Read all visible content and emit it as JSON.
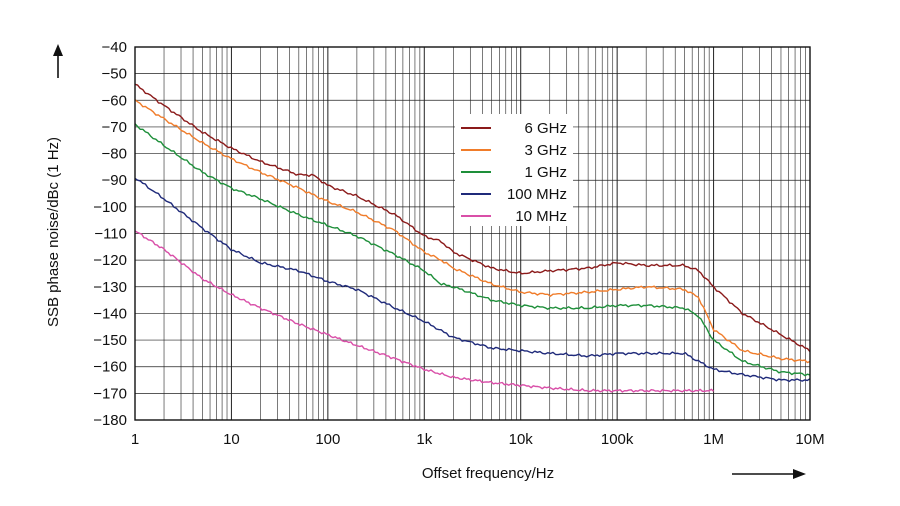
{
  "chart_data": {
    "type": "line",
    "xscale": "log",
    "xlabel": "Offset frequency/Hz",
    "ylabel": "SSB phase noise/dBc (1 Hz)",
    "xlim": [
      1,
      10000000
    ],
    "ylim": [
      -180,
      -40
    ],
    "grid": true,
    "legend_position": "upper-center",
    "x_ticks": [
      {
        "value": 1,
        "label": "1"
      },
      {
        "value": 10,
        "label": "10"
      },
      {
        "value": 100,
        "label": "100"
      },
      {
        "value": 1000,
        "label": "1k"
      },
      {
        "value": 10000,
        "label": "10k"
      },
      {
        "value": 100000,
        "label": "100k"
      },
      {
        "value": 1000000,
        "label": "1M"
      },
      {
        "value": 10000000,
        "label": "10M"
      }
    ],
    "y_ticks": [
      {
        "value": -40,
        "label": "−40"
      },
      {
        "value": -50,
        "label": "−50"
      },
      {
        "value": -60,
        "label": "−60"
      },
      {
        "value": -70,
        "label": "−70"
      },
      {
        "value": -80,
        "label": "−80"
      },
      {
        "value": -90,
        "label": "−90"
      },
      {
        "value": -100,
        "label": "−100"
      },
      {
        "value": -110,
        "label": "−110"
      },
      {
        "value": -120,
        "label": "−120"
      },
      {
        "value": -130,
        "label": "−130"
      },
      {
        "value": -140,
        "label": "−140"
      },
      {
        "value": -150,
        "label": "−150"
      },
      {
        "value": -160,
        "label": "−160"
      },
      {
        "value": -170,
        "label": "−170"
      },
      {
        "value": -180,
        "label": "−180"
      }
    ],
    "series": [
      {
        "name": "6 GHz",
        "color": "#8b1a1a",
        "x": [
          1,
          2,
          5,
          10,
          20,
          50,
          70,
          100,
          200,
          500,
          1000,
          1500,
          2000,
          5000,
          10000,
          20000,
          50000,
          100000,
          200000,
          500000,
          700000,
          1000000,
          2000000,
          5000000,
          10000000
        ],
        "y": [
          -54,
          -62,
          -72,
          -78,
          -83,
          -88,
          -88,
          -92,
          -96,
          -103,
          -111,
          -113,
          -117,
          -123,
          -125,
          -124,
          -123,
          -121,
          -122,
          -122,
          -124,
          -130,
          -140,
          -148,
          -154
        ]
      },
      {
        "name": "3 GHz",
        "color": "#f07c2a",
        "x": [
          1,
          2,
          5,
          10,
          20,
          50,
          100,
          200,
          500,
          1000,
          1500,
          2000,
          5000,
          10000,
          20000,
          50000,
          100000,
          200000,
          500000,
          700000,
          1000000,
          2000000,
          5000000,
          10000000
        ],
        "y": [
          -60,
          -67,
          -76,
          -82,
          -87,
          -93,
          -98,
          -102,
          -109,
          -117,
          -120,
          -123,
          -129,
          -132,
          -133,
          -132,
          -131,
          -130,
          -131,
          -134,
          -146,
          -154,
          -157,
          -158
        ]
      },
      {
        "name": "1 GHz",
        "color": "#1e8f3a",
        "x": [
          1,
          2,
          5,
          10,
          20,
          50,
          100,
          200,
          500,
          1000,
          1500,
          2000,
          5000,
          10000,
          20000,
          50000,
          100000,
          200000,
          500000,
          700000,
          1000000,
          2000000,
          5000000,
          10000000
        ],
        "y": [
          -69,
          -77,
          -87,
          -93,
          -97,
          -103,
          -107,
          -111,
          -118,
          -124,
          -129,
          -130,
          -135,
          -137,
          -138,
          -138,
          -137,
          -137,
          -138,
          -141,
          -150,
          -158,
          -162,
          -163
        ]
      },
      {
        "name": "100 MHz",
        "color": "#1f2a7a",
        "x": [
          1,
          2,
          5,
          10,
          20,
          50,
          100,
          200,
          500,
          1000,
          2000,
          5000,
          10000,
          20000,
          50000,
          100000,
          200000,
          500000,
          700000,
          1000000,
          2000000,
          5000000,
          10000000
        ],
        "y": [
          -89,
          -97,
          -108,
          -116,
          -121,
          -124,
          -128,
          -131,
          -138,
          -143,
          -149,
          -153,
          -154,
          -155,
          -156,
          -155,
          -155,
          -155,
          -158,
          -161,
          -163,
          -165,
          -165
        ]
      },
      {
        "name": "10 MHz",
        "color": "#d94fa8",
        "x": [
          1,
          2,
          5,
          10,
          20,
          50,
          100,
          200,
          500,
          1000,
          2000,
          5000,
          10000,
          20000,
          50000,
          100000,
          200000,
          500000,
          1000000
        ],
        "y": [
          -109,
          -116,
          -127,
          -133,
          -138,
          -144,
          -148,
          -152,
          -157,
          -161,
          -164,
          -166,
          -167,
          -168,
          -169,
          -169,
          -169,
          -169,
          -169
        ]
      }
    ],
    "arrow_labels": {
      "y_arrow": "↑",
      "x_arrow": "→"
    }
  }
}
